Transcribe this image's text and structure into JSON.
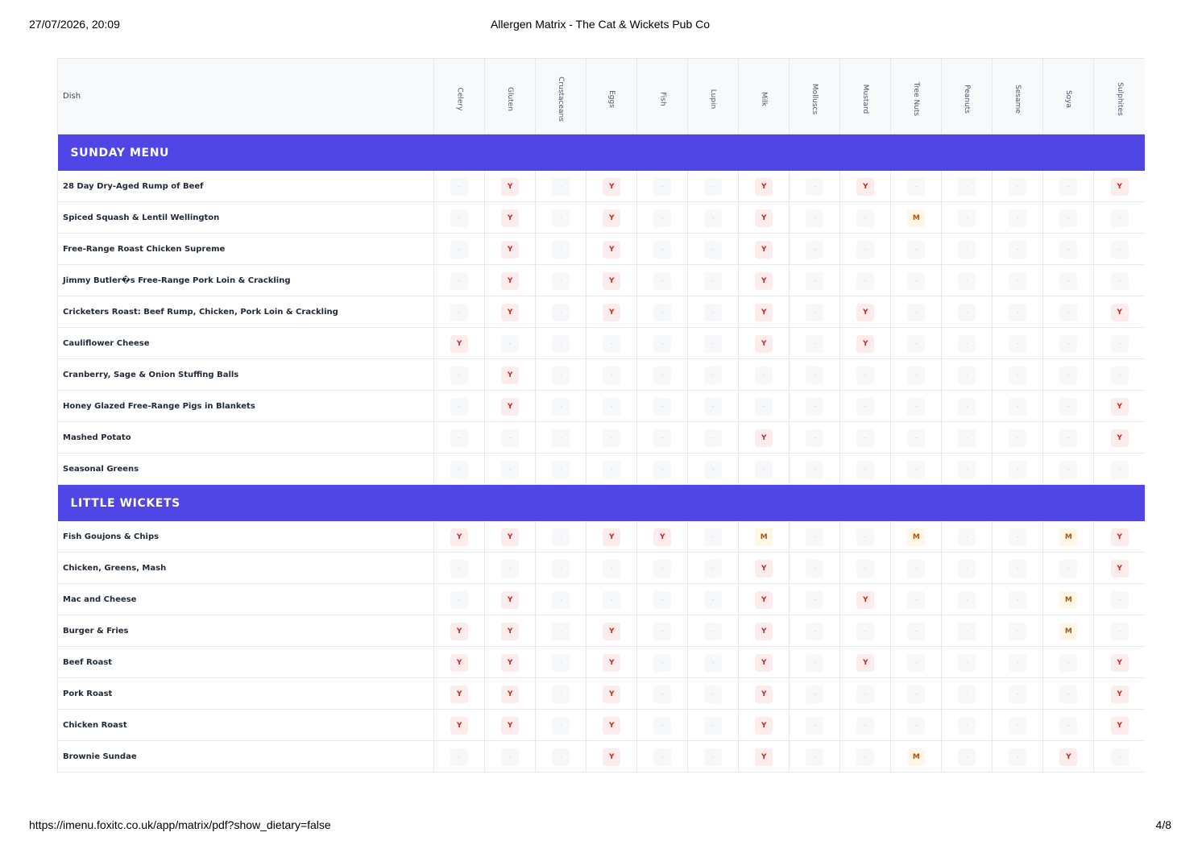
{
  "print_header": {
    "datetime": "27/07/2026, 20:09",
    "title": "Allergen Matrix - The Cat & Wickets Pub Co"
  },
  "print_footer": {
    "url": "https://imenu.foxitc.co.uk/app/matrix/pdf?show_dietary=false",
    "page": "4/8"
  },
  "table": {
    "dish_header": "Dish",
    "allergens": [
      "Celery",
      "Gluten",
      "Crustaceans",
      "Eggs",
      "Fish",
      "Lupin",
      "Milk",
      "Molluscs",
      "Mustard",
      "Tree Nuts",
      "Peanuts",
      "Sesame",
      "Soya",
      "Sulphites"
    ]
  },
  "legend_marks": {
    "contains": "Y",
    "may_contain": "M",
    "none": "-"
  },
  "colors": {
    "section_bg": "#4f46e5",
    "contains_bg": "#fdecec",
    "contains_text": "#c62828",
    "may_bg": "#fef6e6",
    "may_text": "#b45309"
  },
  "sections": [
    {
      "title": "SUNDAY MENU",
      "dishes": [
        {
          "name": "28 Day Dry-Aged Rump of Beef",
          "values": [
            "-",
            "Y",
            "-",
            "Y",
            "-",
            "-",
            "Y",
            "-",
            "Y",
            "-",
            "-",
            "-",
            "-",
            "Y"
          ]
        },
        {
          "name": "Spiced Squash & Lentil Wellington",
          "values": [
            "-",
            "Y",
            "-",
            "Y",
            "-",
            "-",
            "Y",
            "-",
            "-",
            "M",
            "-",
            "-",
            "-",
            "-"
          ]
        },
        {
          "name": "Free-Range Roast Chicken Supreme",
          "values": [
            "-",
            "Y",
            "-",
            "Y",
            "-",
            "-",
            "Y",
            "-",
            "-",
            "-",
            "-",
            "-",
            "-",
            "-"
          ]
        },
        {
          "name": "Jimmy Butler�s Free-Range Pork Loin & Crackling",
          "values": [
            "-",
            "Y",
            "-",
            "Y",
            "-",
            "-",
            "Y",
            "-",
            "-",
            "-",
            "-",
            "-",
            "-",
            "-"
          ]
        },
        {
          "name": "Cricketers Roast: Beef Rump, Chicken, Pork Loin & Crackling",
          "values": [
            "-",
            "Y",
            "-",
            "Y",
            "-",
            "-",
            "Y",
            "-",
            "Y",
            "-",
            "-",
            "-",
            "-",
            "Y"
          ]
        },
        {
          "name": "Cauliflower Cheese",
          "values": [
            "Y",
            "-",
            "-",
            "-",
            "-",
            "-",
            "Y",
            "-",
            "Y",
            "-",
            "-",
            "-",
            "-",
            "-"
          ]
        },
        {
          "name": "Cranberry, Sage & Onion Stuffing Balls",
          "values": [
            "-",
            "Y",
            "-",
            "-",
            "-",
            "-",
            "-",
            "-",
            "-",
            "-",
            "-",
            "-",
            "-",
            "-"
          ]
        },
        {
          "name": "Honey Glazed Free-Range Pigs in Blankets",
          "values": [
            "-",
            "Y",
            "-",
            "-",
            "-",
            "-",
            "-",
            "-",
            "-",
            "-",
            "-",
            "-",
            "-",
            "Y"
          ]
        },
        {
          "name": "Mashed Potato",
          "values": [
            "-",
            "-",
            "-",
            "-",
            "-",
            "-",
            "Y",
            "-",
            "-",
            "-",
            "-",
            "-",
            "-",
            "Y"
          ]
        },
        {
          "name": "Seasonal Greens",
          "values": [
            "-",
            "-",
            "-",
            "-",
            "-",
            "-",
            "-",
            "-",
            "-",
            "-",
            "-",
            "-",
            "-",
            "-"
          ]
        }
      ]
    },
    {
      "title": "LITTLE WICKETS",
      "dishes": [
        {
          "name": "Fish Goujons & Chips",
          "values": [
            "Y",
            "Y",
            "-",
            "Y",
            "Y",
            "-",
            "M",
            "-",
            "-",
            "M",
            "-",
            "-",
            "M",
            "Y"
          ]
        },
        {
          "name": "Chicken, Greens, Mash",
          "values": [
            "-",
            "-",
            "-",
            "-",
            "-",
            "-",
            "Y",
            "-",
            "-",
            "-",
            "-",
            "-",
            "-",
            "Y"
          ]
        },
        {
          "name": "Mac and Cheese",
          "values": [
            "-",
            "Y",
            "-",
            "-",
            "-",
            "-",
            "Y",
            "-",
            "Y",
            "-",
            "-",
            "-",
            "M",
            "-"
          ]
        },
        {
          "name": "Burger & Fries",
          "values": [
            "Y",
            "Y",
            "-",
            "Y",
            "-",
            "-",
            "Y",
            "-",
            "-",
            "-",
            "-",
            "-",
            "M",
            "-"
          ]
        },
        {
          "name": "Beef Roast",
          "values": [
            "Y",
            "Y",
            "-",
            "Y",
            "-",
            "-",
            "Y",
            "-",
            "Y",
            "-",
            "-",
            "-",
            "-",
            "Y"
          ]
        },
        {
          "name": "Pork Roast",
          "values": [
            "Y",
            "Y",
            "-",
            "Y",
            "-",
            "-",
            "Y",
            "-",
            "-",
            "-",
            "-",
            "-",
            "-",
            "Y"
          ]
        },
        {
          "name": "Chicken Roast",
          "values": [
            "Y",
            "Y",
            "-",
            "Y",
            "-",
            "-",
            "Y",
            "-",
            "-",
            "-",
            "-",
            "-",
            "-",
            "Y"
          ]
        },
        {
          "name": "Brownie Sundae",
          "values": [
            "-",
            "-",
            "-",
            "Y",
            "-",
            "-",
            "Y",
            "-",
            "-",
            "M",
            "-",
            "-",
            "Y",
            "-"
          ]
        }
      ]
    }
  ]
}
